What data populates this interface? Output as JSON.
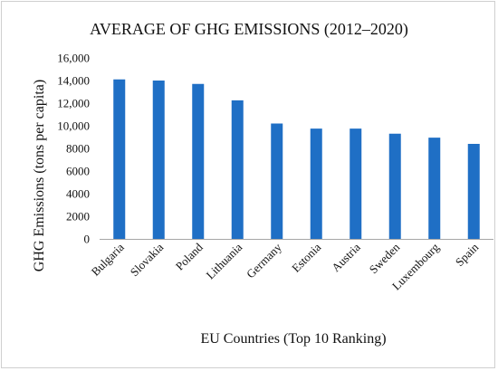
{
  "chart_data": {
    "type": "bar",
    "title": "AVERAGE OF GHG EMISSIONS (2012–2020)",
    "xlabel": "EU Countries (Top 10 Ranking)",
    "ylabel": "GHG Emissions (tons per capita)",
    "categories": [
      "Bulgaria",
      "Slovakia",
      "Poland",
      "Lithuania",
      "Germany",
      "Estonia",
      "Austria",
      "Sweden",
      "Luxembourg",
      "Spain"
    ],
    "values": [
      14100,
      14000,
      13700,
      12250,
      10200,
      9750,
      9750,
      9300,
      8950,
      8400
    ],
    "ylim": [
      0,
      16000
    ],
    "y_ticks": [
      0,
      2000,
      4000,
      6000,
      8000,
      10000,
      12000,
      14000,
      16000
    ],
    "y_tick_labels": [
      "0",
      "2000",
      "4000",
      "6000",
      "8000",
      "10,000",
      "12,000",
      "14,000",
      "16,000"
    ],
    "grid": false,
    "legend": "none",
    "bar_color": "#1f6fc5"
  }
}
